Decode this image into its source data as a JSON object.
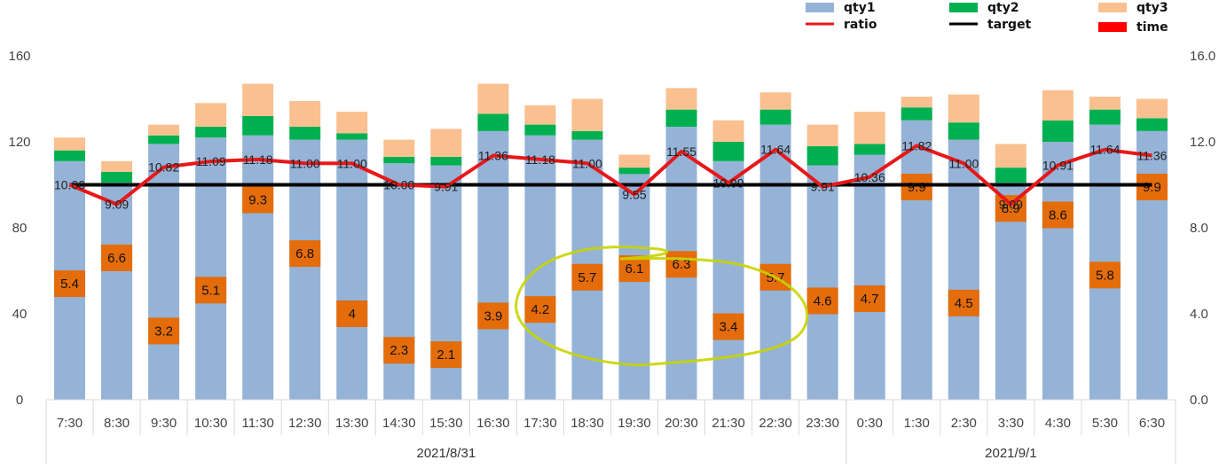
{
  "chart_data": {
    "type": "bar",
    "stacked": true,
    "categories": [
      "7:30",
      "8:30",
      "9:30",
      "10:30",
      "11:30",
      "12:30",
      "13:30",
      "14:30",
      "15:30",
      "16:30",
      "17:30",
      "18:30",
      "19:30",
      "20:30",
      "21:30",
      "22:30",
      "23:30",
      "0:30",
      "1:30",
      "2:30",
      "3:30",
      "4:30",
      "5:30",
      "6:30"
    ],
    "groups": [
      {
        "label": "2021/8/31",
        "start": 0,
        "end": 16
      },
      {
        "label": "2021/9/1",
        "start": 17,
        "end": 23
      }
    ],
    "series": [
      {
        "name": "qty1",
        "color": "#95b3d7",
        "values": [
          111,
          101,
          119,
          122,
          123,
          121,
          121,
          110,
          109,
          125,
          123,
          121,
          105,
          127,
          111,
          128,
          109,
          114,
          130,
          121,
          101,
          120,
          128,
          125
        ]
      },
      {
        "name": "qty2",
        "color": "#00b050",
        "values": [
          5,
          5,
          4,
          5,
          9,
          6,
          3,
          3,
          4,
          8,
          5,
          4,
          3,
          8,
          9,
          7,
          9,
          5,
          6,
          8,
          7,
          10,
          7,
          6
        ]
      },
      {
        "name": "qty3",
        "color": "#fac090",
        "values": [
          6,
          5,
          5,
          11,
          15,
          12,
          10,
          8,
          13,
          14,
          9,
          15,
          6,
          10,
          10,
          8,
          10,
          15,
          5,
          13,
          11,
          14,
          6,
          9
        ]
      },
      {
        "name": "time",
        "color": "#e46c0a",
        "values": [
          5.4,
          6.6,
          3.2,
          5.1,
          9.3,
          6.8,
          4,
          2.3,
          2.1,
          3.9,
          4.2,
          5.7,
          6.1,
          6.3,
          3.4,
          5.7,
          4.6,
          4.7,
          9.9,
          4.5,
          8.9,
          8.6,
          5.8,
          9.9
        ],
        "labels": [
          "5.4",
          "6.6",
          "3.2",
          "5.1",
          "9.3",
          "6.8",
          "4",
          "2.3",
          "2.1",
          "3.9",
          "4.2",
          "5.7",
          "6.1",
          "6.3",
          "3.4",
          "5.7",
          "4.6",
          "4.7",
          "9.9",
          "4.5",
          "8.9",
          "8.6",
          "5.8",
          "9.9"
        ]
      },
      {
        "name": "ratio",
        "color": "#e81818",
        "axis": "right",
        "values": [
          10.0,
          9.09,
          10.82,
          11.09,
          11.18,
          11.0,
          11.0,
          10.0,
          9.91,
          11.36,
          11.18,
          11.0,
          9.55,
          11.55,
          10.09,
          11.64,
          9.91,
          10.36,
          11.82,
          11.0,
          9.09,
          10.91,
          11.64,
          11.36
        ],
        "labels": [
          "10.00",
          "9.09",
          "10.82",
          "11.09",
          "11.18",
          "11.00",
          "11.00",
          "10.00",
          "9.91",
          "11.36",
          "11.18",
          "11.00",
          "9.55",
          "11.55",
          "10.09",
          "11.64",
          "9.91",
          "10.36",
          "11.82",
          "11.00",
          "9.09",
          "10.91",
          "11.64",
          "11.36"
        ]
      },
      {
        "name": "target",
        "color": "#000000",
        "axis": "right",
        "value": 10.0
      }
    ],
    "y_left": {
      "min": 0,
      "max": 160,
      "ticks": [
        "0",
        "40",
        "80",
        "120",
        "160"
      ]
    },
    "y_right": {
      "min": 0,
      "max": 16,
      "ticks": [
        "0.0",
        "4.0",
        "8.0",
        "12.0",
        "16.0"
      ]
    },
    "legend": {
      "placement": "top-right",
      "items": [
        {
          "label": "qty1",
          "symbol": "box",
          "color": "#95b3d7"
        },
        {
          "label": "qty2",
          "symbol": "box",
          "color": "#00b050"
        },
        {
          "label": "qty3",
          "symbol": "box",
          "color": "#fac090"
        },
        {
          "label": "ratio",
          "symbol": "line",
          "color": "#e81818"
        },
        {
          "label": "target",
          "symbol": "line",
          "color": "#000000"
        },
        {
          "label": "time",
          "symbol": "box",
          "color": "#ff0000"
        }
      ]
    },
    "annotation": {
      "type": "hand-drawn-ellipse",
      "color": "#c8d400"
    },
    "grid": false
  }
}
